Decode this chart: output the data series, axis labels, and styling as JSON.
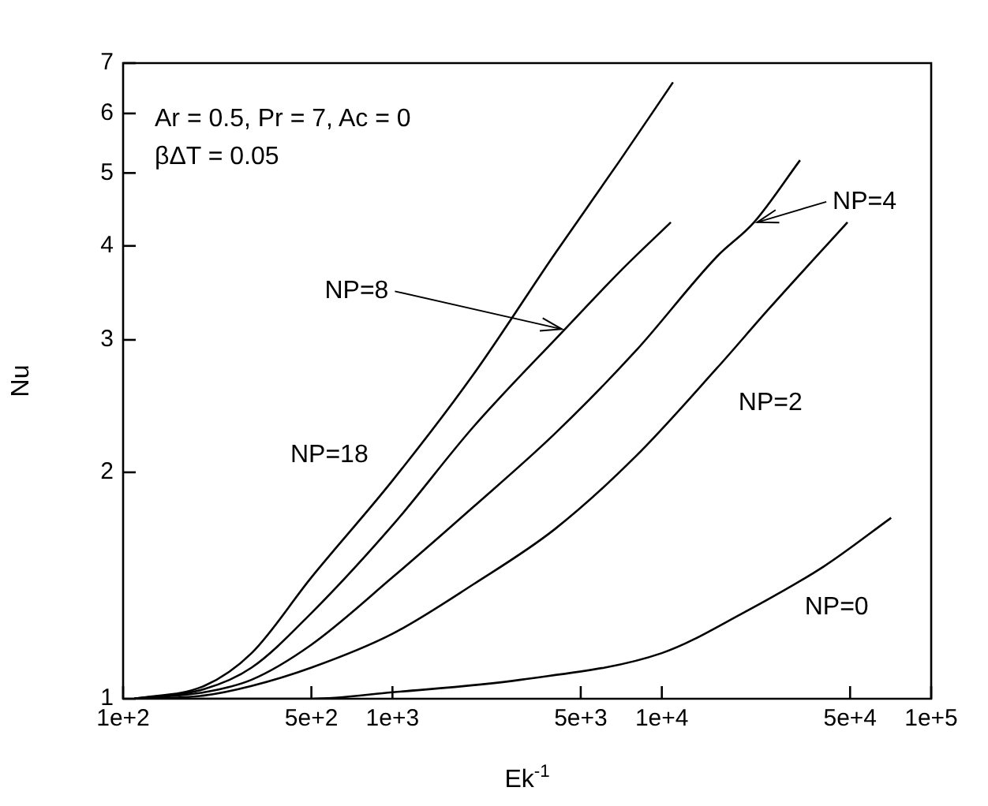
{
  "chart_data": {
    "type": "line",
    "xlabel": "Ek$^{-1}$",
    "ylabel": "Nu",
    "log": "xy",
    "grid": false,
    "legend": false,
    "marker": "none",
    "line_style": "solid",
    "xlim": [
      100,
      100000
    ],
    "ylim": [
      1,
      7
    ],
    "xticks": [
      {
        "value": 100,
        "label": "1e+2"
      },
      {
        "value": 500,
        "label": "5e+2"
      },
      {
        "value": 1000,
        "label": "1e+3"
      },
      {
        "value": 5000,
        "label": "5e+3"
      },
      {
        "value": 10000,
        "label": "1e+4"
      },
      {
        "value": 50000,
        "label": "5e+4"
      },
      {
        "value": 100000,
        "label": "1e+5"
      }
    ],
    "yticks": [
      1,
      2,
      3,
      4,
      5,
      6,
      7
    ],
    "annotations": [
      "Ar = 0.5, Pr = 7, Ac = 0",
      "βΔT = 0.05",
      {
        "text": "NP=18",
        "x": 1000,
        "y": 1.95
      },
      {
        "text": "NP=8",
        "x": 4370,
        "y": 3.1
      },
      {
        "text": "NP=4",
        "x": 22000,
        "y": 4.3
      },
      {
        "text": "NP=2",
        "x": 16000,
        "y": 2.75
      },
      {
        "text": "NP=0",
        "x": 40000,
        "y": 1.5
      }
    ],
    "series": [
      {
        "color": "#000000",
        "x": [
          110,
          200,
          300,
          500,
          1000,
          2000,
          4000,
          7000,
          11000
        ],
        "values": [
          1,
          1.04,
          1.15,
          1.45,
          1.95,
          2.7,
          3.9,
          5.2,
          6.6
        ]
      },
      {
        "color": "#000000",
        "x": [
          110,
          200,
          300,
          500,
          1000,
          2000,
          4370,
          7000,
          10800
        ],
        "values": [
          1,
          1.03,
          1.1,
          1.3,
          1.7,
          2.3,
          3.1,
          3.7,
          4.3
        ]
      },
      {
        "color": "#000000",
        "x": [
          110,
          200,
          300,
          500,
          1000,
          2000,
          4000,
          8000,
          16000,
          22000,
          32600
        ],
        "values": [
          1,
          1.02,
          1.06,
          1.18,
          1.45,
          1.8,
          2.25,
          2.9,
          3.87,
          4.3,
          5.2
        ]
      },
      {
        "color": "#000000",
        "x": [
          110,
          200,
          300,
          500,
          1000,
          2000,
          4000,
          8000,
          16000,
          25000,
          48900
        ],
        "values": [
          1,
          1.01,
          1.04,
          1.1,
          1.22,
          1.42,
          1.68,
          2.1,
          2.75,
          3.3,
          4.3
        ]
      },
      {
        "color": "#000000",
        "x": [
          110,
          500,
          1000,
          3000,
          10000,
          20000,
          40000,
          71000
        ],
        "values": [
          1,
          1.0,
          1.02,
          1.06,
          1.15,
          1.3,
          1.5,
          1.74
        ]
      }
    ]
  }
}
